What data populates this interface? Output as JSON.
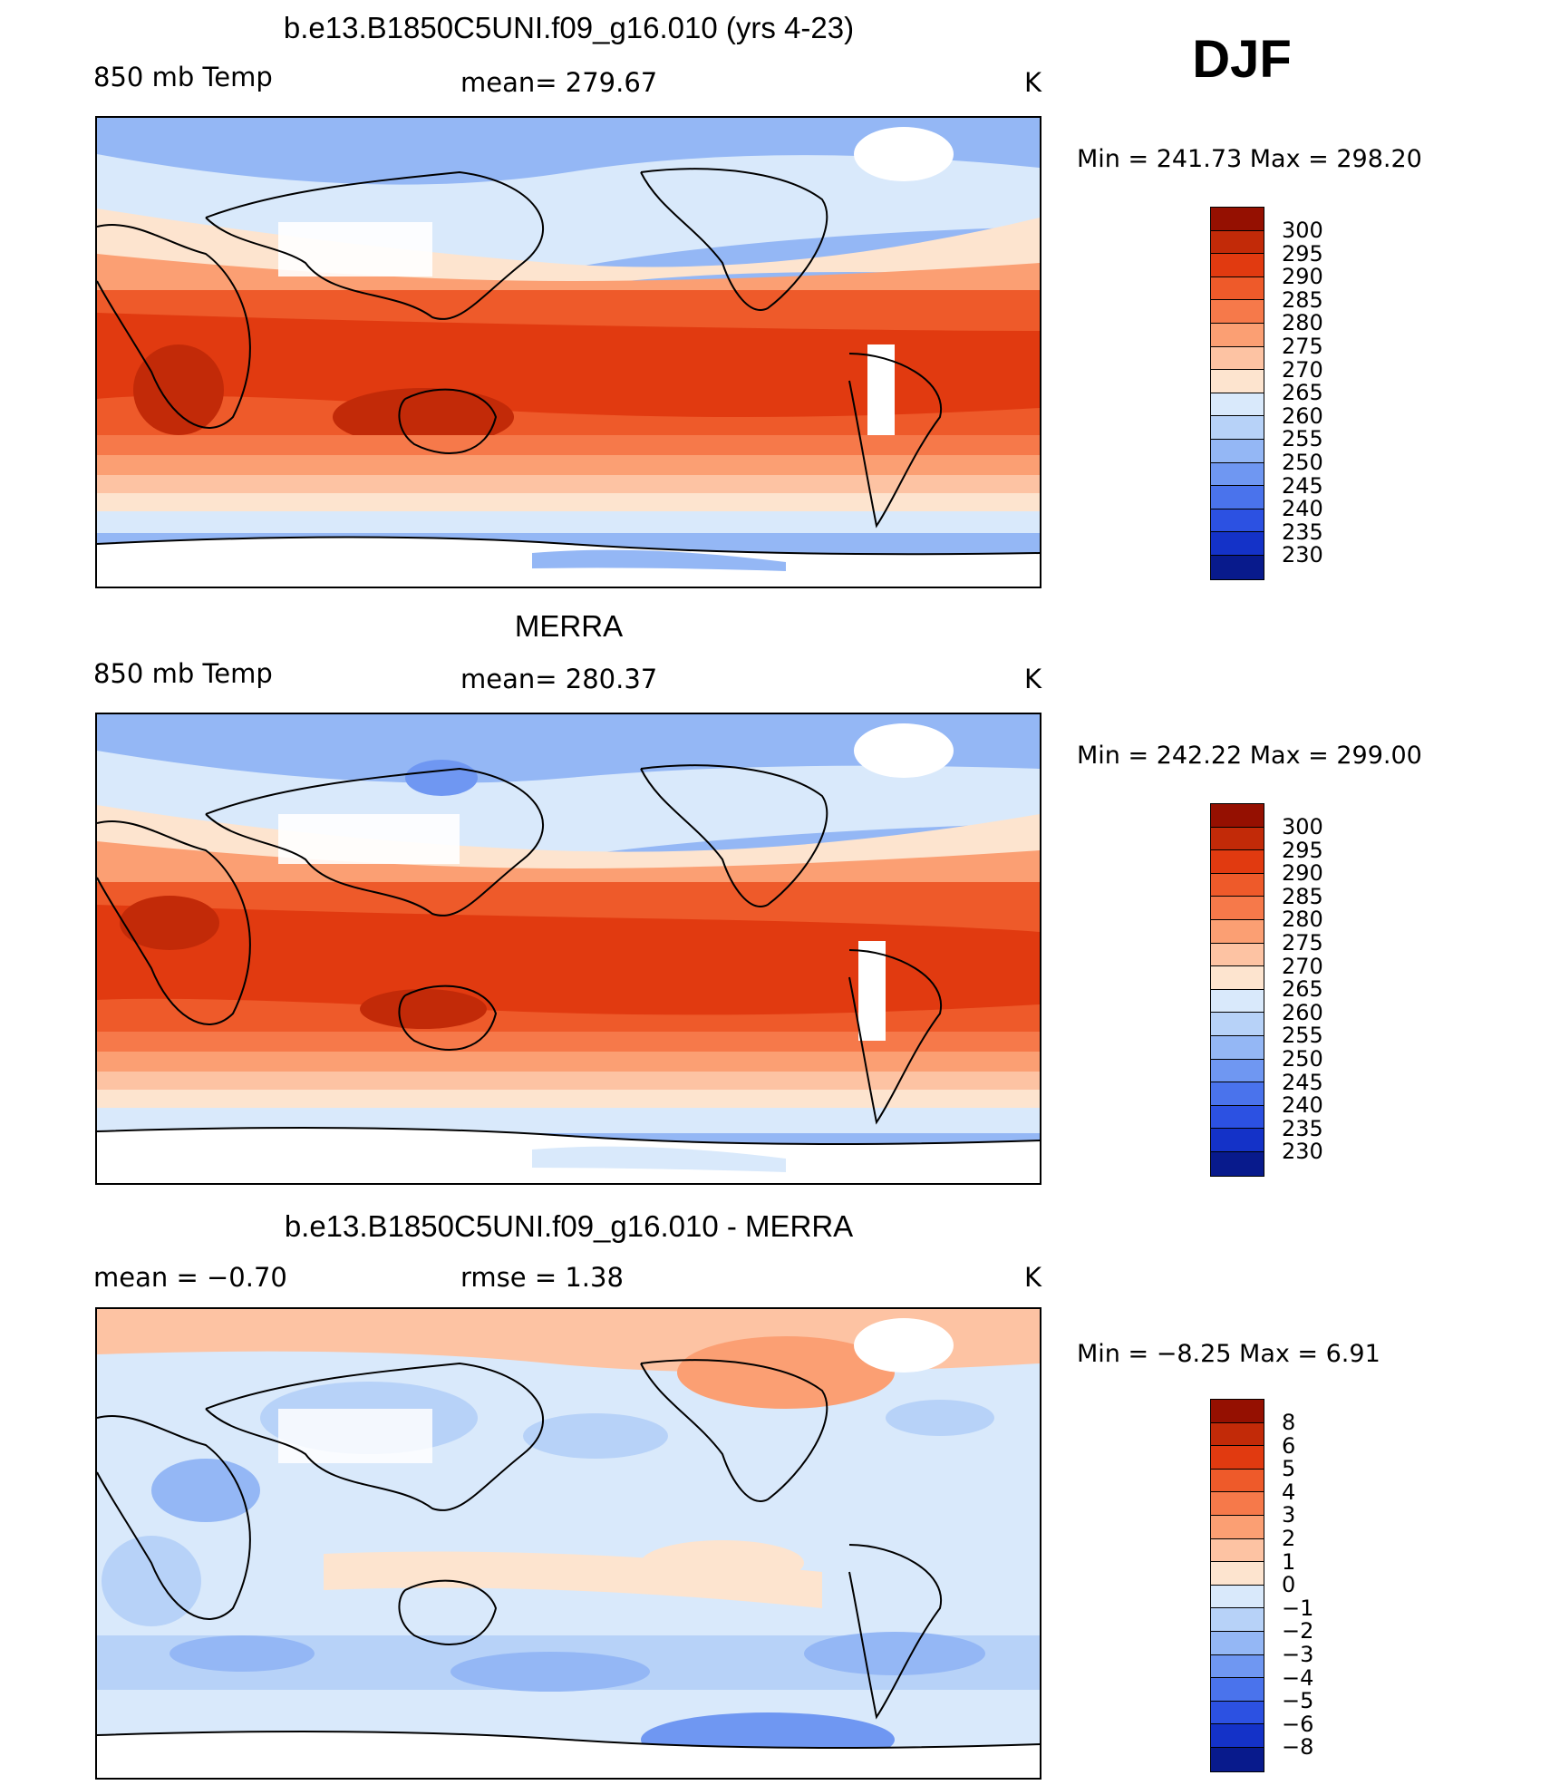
{
  "season": "DJF",
  "colors": {
    "warm": [
      "#fde4cf",
      "#fdc3a3",
      "#fb9f73",
      "#f6794a",
      "#ee5a2a",
      "#e13a10",
      "#c22a08",
      "#951001"
    ],
    "cool": [
      "#d9e9fb",
      "#b7d2f8",
      "#94b7f5",
      "#6f97f2",
      "#4a73ec",
      "#2c51e2",
      "#1432c8",
      "#081a8c"
    ],
    "diff_warm": [
      "#fde4cf",
      "#fdc3a3",
      "#fb9f73",
      "#f6794a",
      "#ee5a2a",
      "#e13a10",
      "#c22a08",
      "#951001"
    ],
    "diff_cool": [
      "#d9e9fb",
      "#b7d2f8",
      "#94b7f5",
      "#6f97f2",
      "#4a73ec",
      "#2c51e2",
      "#1432c8",
      "#081a8c"
    ]
  },
  "panels": [
    {
      "title": "b.e13.B1850C5UNI.f09_g16.010 (yrs 4-23)",
      "left_label": "850 mb Temp",
      "center_label": "mean= 279.67",
      "units": "K",
      "stats": "Min = 241.73 Max = 298.20",
      "colorbar_labels": [
        "300",
        "295",
        "290",
        "285",
        "280",
        "275",
        "270",
        "265",
        "260",
        "255",
        "250",
        "245",
        "240",
        "235",
        "230"
      ]
    },
    {
      "title": "MERRA",
      "left_label": "850 mb Temp",
      "center_label": "mean= 280.37",
      "units": "K",
      "stats": "Min = 242.22 Max = 299.00",
      "colorbar_labels": [
        "300",
        "295",
        "290",
        "285",
        "280",
        "275",
        "270",
        "265",
        "260",
        "255",
        "250",
        "245",
        "240",
        "235",
        "230"
      ]
    },
    {
      "title": "b.e13.B1850C5UNI.f09_g16.010 - MERRA",
      "left_label": "mean = −0.70",
      "center_label": "rmse = 1.38",
      "units": "K",
      "stats": "Min = −8.25 Max = 6.91",
      "colorbar_labels": [
        "8",
        "6",
        "5",
        "4",
        "3",
        "2",
        "1",
        "0",
        "−1",
        "−2",
        "−3",
        "−4",
        "−5",
        "−6",
        "−8"
      ]
    }
  ]
}
